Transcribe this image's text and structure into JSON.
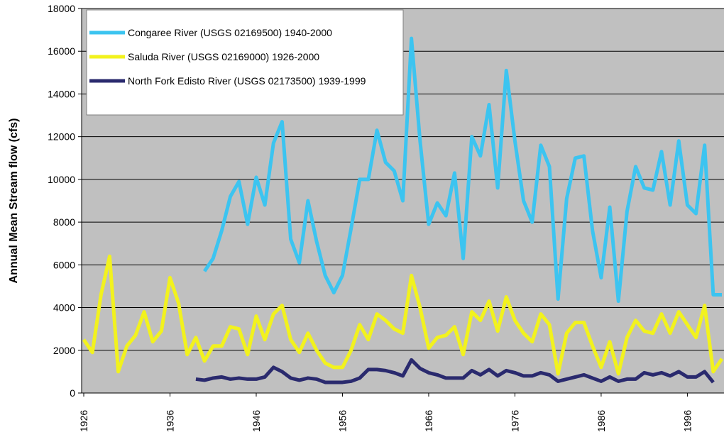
{
  "chart_data": {
    "type": "line",
    "y_label": "Annual Mean Stream flow (cfs)",
    "x": [
      1926,
      1927,
      1928,
      1929,
      1930,
      1931,
      1932,
      1933,
      1934,
      1935,
      1936,
      1937,
      1938,
      1939,
      1940,
      1941,
      1942,
      1943,
      1944,
      1945,
      1946,
      1947,
      1948,
      1949,
      1950,
      1951,
      1952,
      1953,
      1954,
      1955,
      1956,
      1957,
      1958,
      1959,
      1960,
      1961,
      1962,
      1963,
      1964,
      1965,
      1966,
      1967,
      1968,
      1969,
      1970,
      1971,
      1972,
      1973,
      1974,
      1975,
      1976,
      1977,
      1978,
      1979,
      1980,
      1981,
      1982,
      1983,
      1984,
      1985,
      1986,
      1987,
      1988,
      1989,
      1990,
      1991,
      1992,
      1993,
      1994,
      1995,
      1996,
      1997,
      1998,
      1999,
      2000
    ],
    "series": [
      {
        "name": "Congaree River (USGS 02169500) 1940-2000",
        "color": "#3cc4f0",
        "values": [
          null,
          null,
          null,
          null,
          null,
          null,
          null,
          null,
          null,
          null,
          null,
          null,
          null,
          null,
          5700,
          6300,
          7600,
          9200,
          9900,
          7900,
          10100,
          8800,
          11700,
          12700,
          7200,
          6100,
          9000,
          7100,
          5500,
          4700,
          5500,
          7700,
          10000,
          10000,
          12300,
          10800,
          10400,
          9000,
          16600,
          11800,
          7900,
          8900,
          8300,
          10300,
          6300,
          12000,
          11100,
          13500,
          9600,
          15100,
          11800,
          9000,
          8000,
          11600,
          10600,
          4400,
          9100,
          11000,
          11100,
          7600,
          5400,
          8700,
          4300,
          8500,
          10600,
          9600,
          9500,
          11300,
          8800,
          11800,
          8800,
          8400,
          11600,
          4600,
          4600
        ]
      },
      {
        "name": "Saluda River (USGS 02169000) 1926-2000",
        "color": "#f2f21e",
        "values": [
          2500,
          1900,
          4600,
          6400,
          1000,
          2200,
          2700,
          3800,
          2400,
          2900,
          5400,
          4200,
          1800,
          2600,
          1500,
          2200,
          2200,
          3100,
          3000,
          1800,
          3600,
          2500,
          3700,
          4100,
          2500,
          1900,
          2800,
          2000,
          1400,
          1200,
          1200,
          2000,
          3200,
          2500,
          3700,
          3400,
          3000,
          2800,
          5500,
          4000,
          2100,
          2600,
          2700,
          3100,
          1800,
          3800,
          3400,
          4300,
          2900,
          4500,
          3400,
          2800,
          2400,
          3700,
          3200,
          900,
          2800,
          3300,
          3300,
          2200,
          1200,
          2400,
          900,
          2600,
          3400,
          2900,
          2800,
          3700,
          2800,
          3800,
          3200,
          2600,
          4100,
          1000,
          1600
        ]
      },
      {
        "name": "North Fork Edisto River (USGS 02173500) 1939-1999",
        "color": "#2a2a6e",
        "values": [
          null,
          null,
          null,
          null,
          null,
          null,
          null,
          null,
          null,
          null,
          null,
          null,
          null,
          650,
          600,
          700,
          750,
          650,
          700,
          650,
          650,
          750,
          1200,
          1000,
          700,
          600,
          700,
          650,
          500,
          500,
          500,
          550,
          700,
          1100,
          1100,
          1050,
          950,
          800,
          1550,
          1150,
          950,
          850,
          700,
          700,
          700,
          1050,
          850,
          1100,
          800,
          1050,
          950,
          800,
          800,
          950,
          850,
          550,
          650,
          750,
          850,
          700,
          550,
          750,
          550,
          650,
          650,
          950,
          850,
          950,
          800,
          1000,
          750,
          750,
          1000,
          500,
          null
        ]
      }
    ],
    "xlim": [
      1926,
      2000
    ],
    "xticks": [
      1926,
      1936,
      1946,
      1956,
      1966,
      1976,
      1986,
      1996
    ],
    "ylim": [
      0,
      18000
    ],
    "yticks": [
      0,
      2000,
      4000,
      6000,
      8000,
      10000,
      12000,
      14000,
      16000,
      18000
    ],
    "grid": true,
    "legend": "top-left",
    "plot_background": "#c0c0c0"
  }
}
